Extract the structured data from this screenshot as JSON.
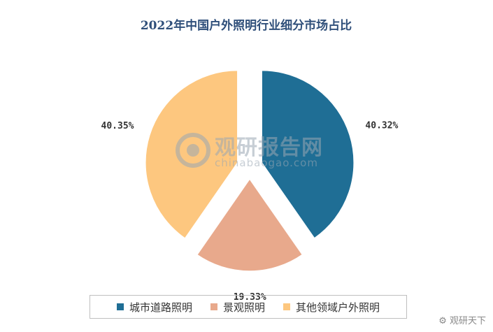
{
  "chart_data": {
    "type": "pie",
    "title": "2022年中国户外照明行业细分市场占比",
    "categories": [
      "城市道路照明",
      "景观照明",
      "其他领域户外照明"
    ],
    "values": [
      40.32,
      19.33,
      40.35
    ],
    "value_labels": [
      "40.32%",
      "19.33%",
      "40.35%"
    ],
    "colors": [
      "#1f6e95",
      "#e8a98c",
      "#fdc77f"
    ],
    "exploded": true,
    "legend_position": "bottom"
  },
  "watermark": {
    "text_cn": "观研报告网",
    "text_en": "chinabaogao.com"
  },
  "corner_mark": "观研天下"
}
